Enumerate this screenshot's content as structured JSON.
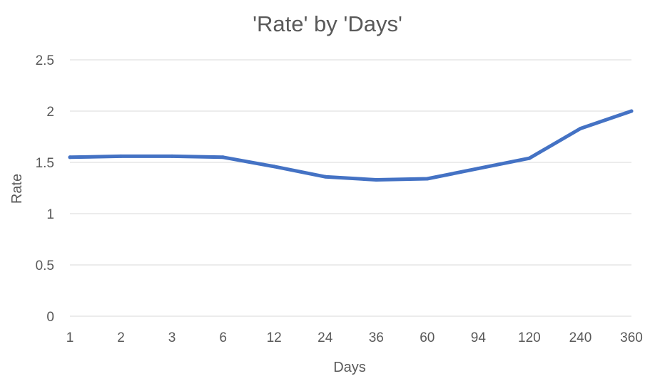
{
  "chart_data": {
    "type": "line",
    "title": "'Rate' by 'Days'",
    "xlabel": "Days",
    "ylabel": "Rate",
    "categories": [
      "1",
      "2",
      "3",
      "6",
      "12",
      "24",
      "36",
      "60",
      "94",
      "120",
      "240",
      "360"
    ],
    "series": [
      {
        "values": [
          1.55,
          1.56,
          1.56,
          1.55,
          1.46,
          1.36,
          1.33,
          1.34,
          1.44,
          1.54,
          1.83,
          2.0
        ],
        "color": "#4472c4"
      }
    ],
    "ylim": [
      0,
      2.5
    ],
    "yticks": [
      "0",
      "0.5",
      "1",
      "1.5",
      "2",
      "2.5"
    ],
    "grid": true,
    "legend": "none"
  }
}
